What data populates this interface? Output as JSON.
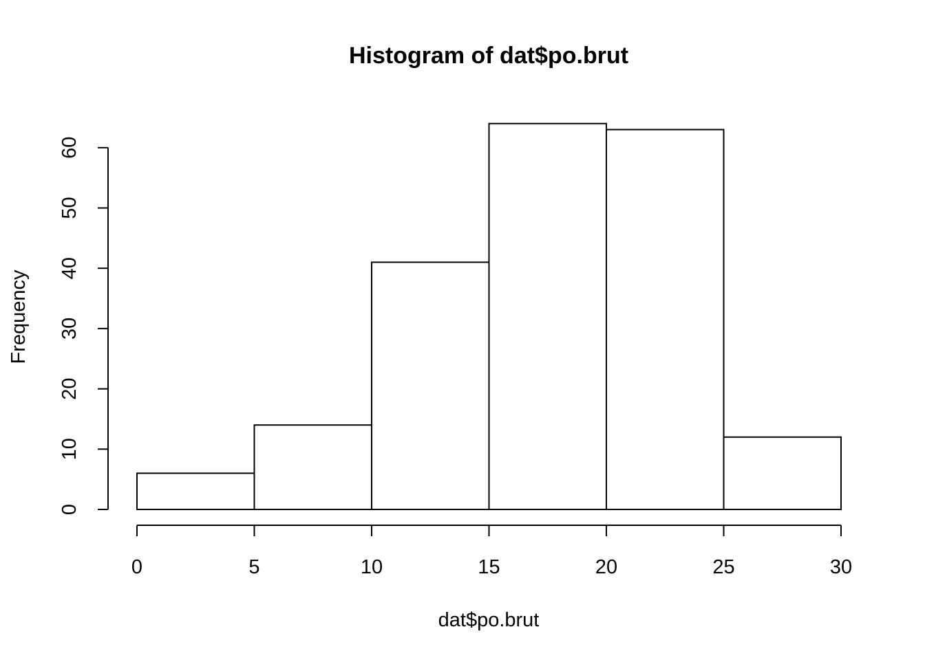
{
  "chart_data": {
    "type": "bar",
    "subtype": "histogram",
    "title": "Histogram of dat$po.brut",
    "xlabel": "dat$po.brut",
    "ylabel": "Frequency",
    "bins": [
      {
        "from": 0,
        "to": 5,
        "count": 6
      },
      {
        "from": 5,
        "to": 10,
        "count": 14
      },
      {
        "from": 10,
        "to": 15,
        "count": 41
      },
      {
        "from": 15,
        "to": 20,
        "count": 64
      },
      {
        "from": 20,
        "to": 25,
        "count": 63
      },
      {
        "from": 25,
        "to": 30,
        "count": 12
      }
    ],
    "xticks": [
      0,
      5,
      10,
      15,
      20,
      25,
      30
    ],
    "yticks": [
      0,
      10,
      20,
      30,
      40,
      50,
      60
    ],
    "xlim": [
      0,
      30
    ],
    "ylim": [
      0,
      64
    ],
    "grid": false,
    "legend": "none",
    "colors": {
      "bar_fill": "#ffffff",
      "bar_stroke": "#000000"
    }
  }
}
